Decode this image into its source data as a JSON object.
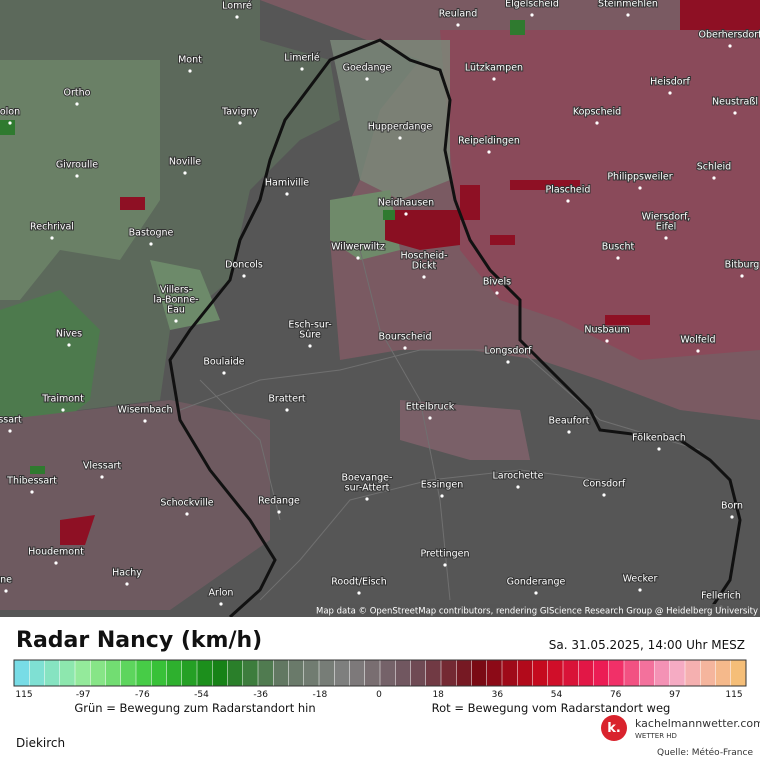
{
  "map": {
    "places": [
      [
        "Lomré"
      ],
      [
        "Reuland"
      ],
      [
        "Elgelscheid"
      ],
      [
        "Steinmehlen"
      ],
      [
        "Oberhersdorf"
      ],
      [
        "Mont"
      ],
      [
        "Limerlé"
      ],
      [
        "Goedange"
      ],
      [
        "Lützkampen"
      ],
      [
        "Heisdorf"
      ],
      [
        "Ortho"
      ],
      [
        "Neustraßl"
      ],
      [
        "olon"
      ],
      [
        "Tavigny"
      ],
      [
        "Hupperdange"
      ],
      [
        "Kopscheid"
      ],
      [
        "Reipeldingen"
      ],
      [
        "Givroulle"
      ],
      [
        "Noville"
      ],
      [
        "Schleid"
      ],
      [
        "Hamiville"
      ],
      [
        "Philippsweiler"
      ],
      [
        "Plascheid"
      ],
      [
        "Neidhausen"
      ],
      [
        "Wiersdorf,",
        "Eifel"
      ],
      [
        "Rechrival"
      ],
      [
        "Bastogne"
      ],
      [
        "Wilwerwiltz"
      ],
      [
        "Buscht"
      ],
      [
        "Hoscheid-",
        "Dickt"
      ],
      [
        "Doncols"
      ],
      [
        "Bitburg"
      ],
      [
        "Villers-",
        "la-Bonne-",
        "Eau"
      ],
      [
        "Bivels"
      ],
      [
        "Nusbaum"
      ],
      [
        "Esch-sur-",
        "Sûre"
      ],
      [
        "Nives"
      ],
      [
        "Bourscheid"
      ],
      [
        "Wolfeld"
      ],
      [
        "Longsdorf"
      ],
      [
        "Boulaide"
      ],
      [
        "Traimont"
      ],
      [
        "Brattert"
      ],
      [
        "Ettelbruck"
      ],
      [
        "Wisembach"
      ],
      [
        "ssart"
      ],
      [
        "Beaufort"
      ],
      [
        "Fölkenbach"
      ],
      [
        "Vlessart"
      ],
      [
        "Boevange-",
        "sur-Attert"
      ],
      [
        "Larochette"
      ],
      [
        "Thibessart"
      ],
      [
        "Essingen"
      ],
      [
        "Consdorf"
      ],
      [
        "Redange"
      ],
      [
        "Schockville"
      ],
      [
        "Born"
      ],
      [
        "Houdemont"
      ],
      [
        "Prettingen"
      ],
      [
        "Hachy"
      ],
      [
        "ne"
      ],
      [
        "Roodt/Eisch"
      ],
      [
        "Gonderange"
      ],
      [
        "Wecker"
      ],
      [
        "Arlon"
      ],
      [
        "Fellerich"
      ]
    ],
    "attribution": "Map data © OpenStreetMap contributors, rendering GIScience Research Group @ Heidelberg University"
  },
  "legend": {
    "title": "Radar Nancy (km/h)",
    "timestamp": "Sa. 31.05.2025, 14:00 Uhr MESZ",
    "ticks": [
      "115",
      "-97",
      "-76",
      "-54",
      "-36",
      "-18",
      "0",
      "18",
      "36",
      "54",
      "76",
      "97",
      "115"
    ],
    "green_note": "Grün = Bewegung zum Radarstandort hin",
    "red_note": "Rot = Bewegung vom Radarstandort weg"
  },
  "footer": {
    "station": "Diekirch",
    "brand": "kachelmannwetter.com",
    "brand_sub": "WETTER HD",
    "logo": "k.",
    "source": "Quelle: Météo-France"
  }
}
